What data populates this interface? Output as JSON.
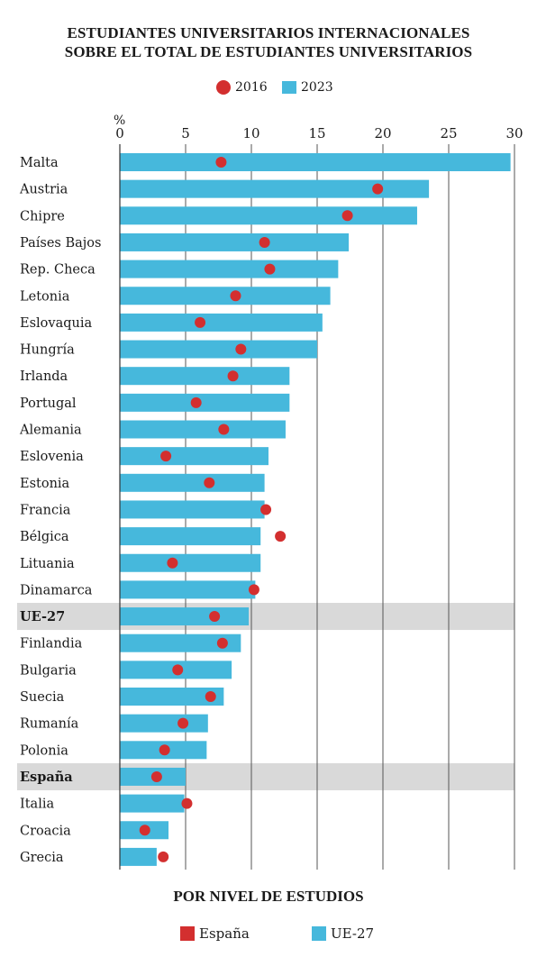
{
  "header": {
    "title_line1": "ESTUDIANTES UNIVERSITARIOS INTERNACIONALES",
    "title_line2": "SOBRE EL TOTAL DE ESTUDIANTES UNIVERSITARIOS"
  },
  "legend": {
    "series_2016": "2016",
    "series_2023": "2023"
  },
  "footer": {
    "title": "POR NIVEL DE ESTUDIOS",
    "legend_spain": "España",
    "legend_eu": "UE-27"
  },
  "colors": {
    "bar": "#46b8dc",
    "dot": "#d32f2f",
    "highlight_band": "#d9d9d9",
    "spain_swatch": "#d32f2f",
    "eu_swatch": "#46b8dc"
  },
  "chart_data": {
    "type": "bar",
    "orientation": "horizontal",
    "unit_label": "%",
    "xlim": [
      0,
      30
    ],
    "x_ticks": [
      0,
      5,
      10,
      15,
      20,
      25,
      30
    ],
    "categories": [
      "Malta",
      "Austria",
      "Chipre",
      "Países Bajos",
      "Rep. Checa",
      "Letonia",
      "Eslovaquia",
      "Hungría",
      "Irlanda",
      "Portugal",
      "Alemania",
      "Eslovenia",
      "Estonia",
      "Francia",
      "Bélgica",
      "Lituania",
      "Dinamarca",
      "UE-27",
      "Finlandia",
      "Bulgaria",
      "Suecia",
      "Rumanía",
      "Polonia",
      "España",
      "Italia",
      "Croacia",
      "Grecia"
    ],
    "highlighted": [
      "UE-27",
      "España"
    ],
    "series": [
      {
        "name": "2023",
        "kind": "bar",
        "values": [
          29.7,
          23.5,
          22.6,
          17.4,
          16.6,
          16.0,
          15.4,
          15.0,
          12.9,
          12.9,
          12.6,
          11.3,
          11.0,
          11.0,
          10.7,
          10.7,
          10.3,
          9.8,
          9.2,
          8.5,
          7.9,
          6.7,
          6.6,
          5.0,
          4.9,
          3.7,
          2.8
        ]
      },
      {
        "name": "2016",
        "kind": "dot",
        "values": [
          7.7,
          19.6,
          17.3,
          11.0,
          11.4,
          8.8,
          6.1,
          9.2,
          8.6,
          5.8,
          7.9,
          3.5,
          6.8,
          11.1,
          12.2,
          4.0,
          10.2,
          7.2,
          7.8,
          4.4,
          6.9,
          4.8,
          3.4,
          2.8,
          5.1,
          1.9,
          3.3
        ]
      }
    ]
  }
}
